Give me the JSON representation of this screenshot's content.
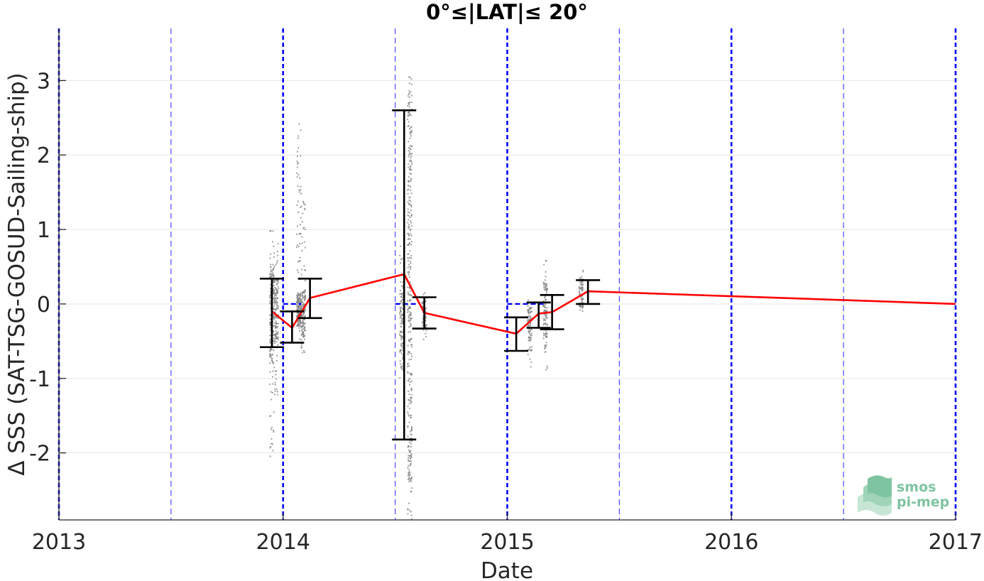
{
  "chart_data": {
    "type": "scatter",
    "title": "0°≤|LAT|≤ 20°",
    "xlabel": "Date",
    "ylabel": "Δ SSS (SAT-TSG-GOSUD-Sailing-ship)",
    "xlim": [
      2013.0,
      2017.0
    ],
    "ylim": [
      -2.9,
      3.7
    ],
    "x_ticks": [
      2013,
      2014,
      2015,
      2016,
      2017
    ],
    "x_tick_labels": [
      "2013",
      "2014",
      "2015",
      "2016",
      "2017"
    ],
    "y_ticks": [
      -2,
      -1,
      0,
      1,
      2,
      3
    ],
    "y_tick_labels": [
      "-2",
      "-1",
      "0",
      "1",
      "2",
      "3"
    ],
    "grid": "horizontal",
    "colors": {
      "raw": "#808080",
      "median_line": "#ff0000",
      "error_bars": "#000000",
      "year_lines": "#0000ff",
      "half_year_lines": "#2929ff",
      "zero_segments": "#0000ff",
      "logo": "#7fc4a1"
    },
    "year_lines": [
      2013.0,
      2014.0,
      2015.0,
      2016.0,
      2017.0
    ],
    "half_year_lines": [
      2013.5,
      2014.5,
      2015.5,
      2016.5
    ],
    "zero_segments": [
      [
        2014.0,
        2014.08
      ],
      [
        2014.5,
        2014.6
      ],
      [
        2015.0,
        2015.17
      ]
    ],
    "raw_clusters": [
      {
        "x": 2013.95,
        "y_min": -2.05,
        "y_max": 1.12,
        "core_min": -0.8,
        "core_max": 0.5
      },
      {
        "x": 2013.97,
        "y_min": -1.3,
        "y_max": 0.9,
        "core_min": -0.5,
        "core_max": 0.35
      },
      {
        "x": 2014.07,
        "y_min": -0.55,
        "y_max": 2.45,
        "core_min": -0.3,
        "core_max": 0.15
      },
      {
        "x": 2014.09,
        "y_min": -0.7,
        "y_max": 1.55,
        "core_min": -0.45,
        "core_max": 0.2
      },
      {
        "x": 2014.53,
        "y_min": -1.0,
        "y_max": 0.8,
        "core_min": -0.9,
        "core_max": 0.3
      },
      {
        "x": 2014.565,
        "y_min": -2.9,
        "y_max": 3.05,
        "core_min": -2.4,
        "core_max": 2.9
      },
      {
        "x": 2014.63,
        "y_min": -0.55,
        "y_max": 0.15,
        "core_min": -0.35,
        "core_max": 0.05
      },
      {
        "x": 2015.1,
        "y_min": -0.85,
        "y_max": 0.1,
        "core_min": -0.5,
        "core_max": -0.05
      },
      {
        "x": 2015.17,
        "y_min": -0.9,
        "y_max": 0.6,
        "core_min": -0.45,
        "core_max": 0.3
      },
      {
        "x": 2015.33,
        "y_min": -0.2,
        "y_max": 0.48,
        "core_min": -0.05,
        "core_max": 0.35
      }
    ],
    "error_bars": [
      {
        "x": 2013.95,
        "low": -0.58,
        "high": 0.34
      },
      {
        "x": 2014.04,
        "low": -0.52,
        "high": -0.1
      },
      {
        "x": 2014.12,
        "low": -0.19,
        "high": 0.34
      },
      {
        "x": 2014.54,
        "low": -1.82,
        "high": 2.6
      },
      {
        "x": 2014.63,
        "low": -0.33,
        "high": 0.09
      },
      {
        "x": 2015.04,
        "low": -0.63,
        "high": -0.18
      },
      {
        "x": 2015.14,
        "low": -0.32,
        "high": 0.02
      },
      {
        "x": 2015.2,
        "low": -0.34,
        "high": 0.12
      },
      {
        "x": 2015.36,
        "low": 0.0,
        "high": 0.32
      }
    ],
    "median_line": {
      "x": [
        2013.95,
        2014.04,
        2014.12,
        2014.54,
        2014.63,
        2015.04,
        2015.14,
        2015.2,
        2015.36,
        2017.0
      ],
      "y": [
        -0.1,
        -0.32,
        0.08,
        0.4,
        -0.12,
        -0.4,
        -0.13,
        -0.11,
        0.17,
        0.0
      ]
    }
  },
  "logo": {
    "line1": "smos",
    "line2": "pi-mep"
  }
}
